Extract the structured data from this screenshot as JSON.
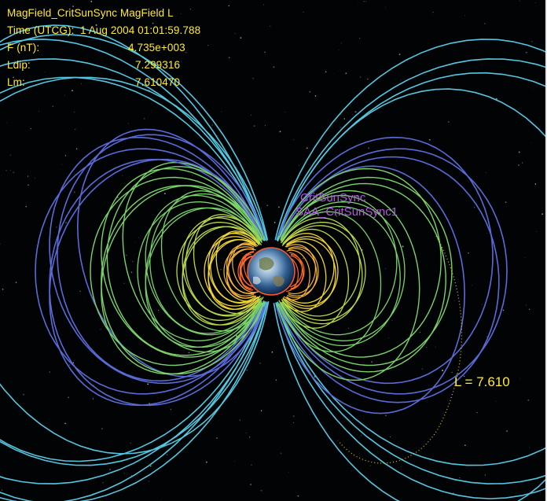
{
  "overlay": {
    "title": "MagField_CritSunSync MagField L",
    "time_label": "Time (UTCG):",
    "time_value": "1 Aug 2004 01:01:59.788",
    "rows": [
      {
        "label": "F (nT):",
        "value": "4.735e+003"
      },
      {
        "label": "Ldip:",
        "value": "7.299316"
      },
      {
        "label": "Lm:",
        "value": "7.610470"
      }
    ]
  },
  "satellite": {
    "name": "CritSunSync",
    "sensor": "SAA_CritSunSync1",
    "color": "#b05ad8"
  },
  "shell_label": "L = 7.610",
  "colors": {
    "background": "#020305",
    "readout": "#ffe93a",
    "outer_shell": "#5a6bd8",
    "outermost_shell": "#56c6e0",
    "mid_shell": "#7ad36a",
    "inner_shell": "#f0d535",
    "innermost_shell": "#ff6a2a"
  }
}
